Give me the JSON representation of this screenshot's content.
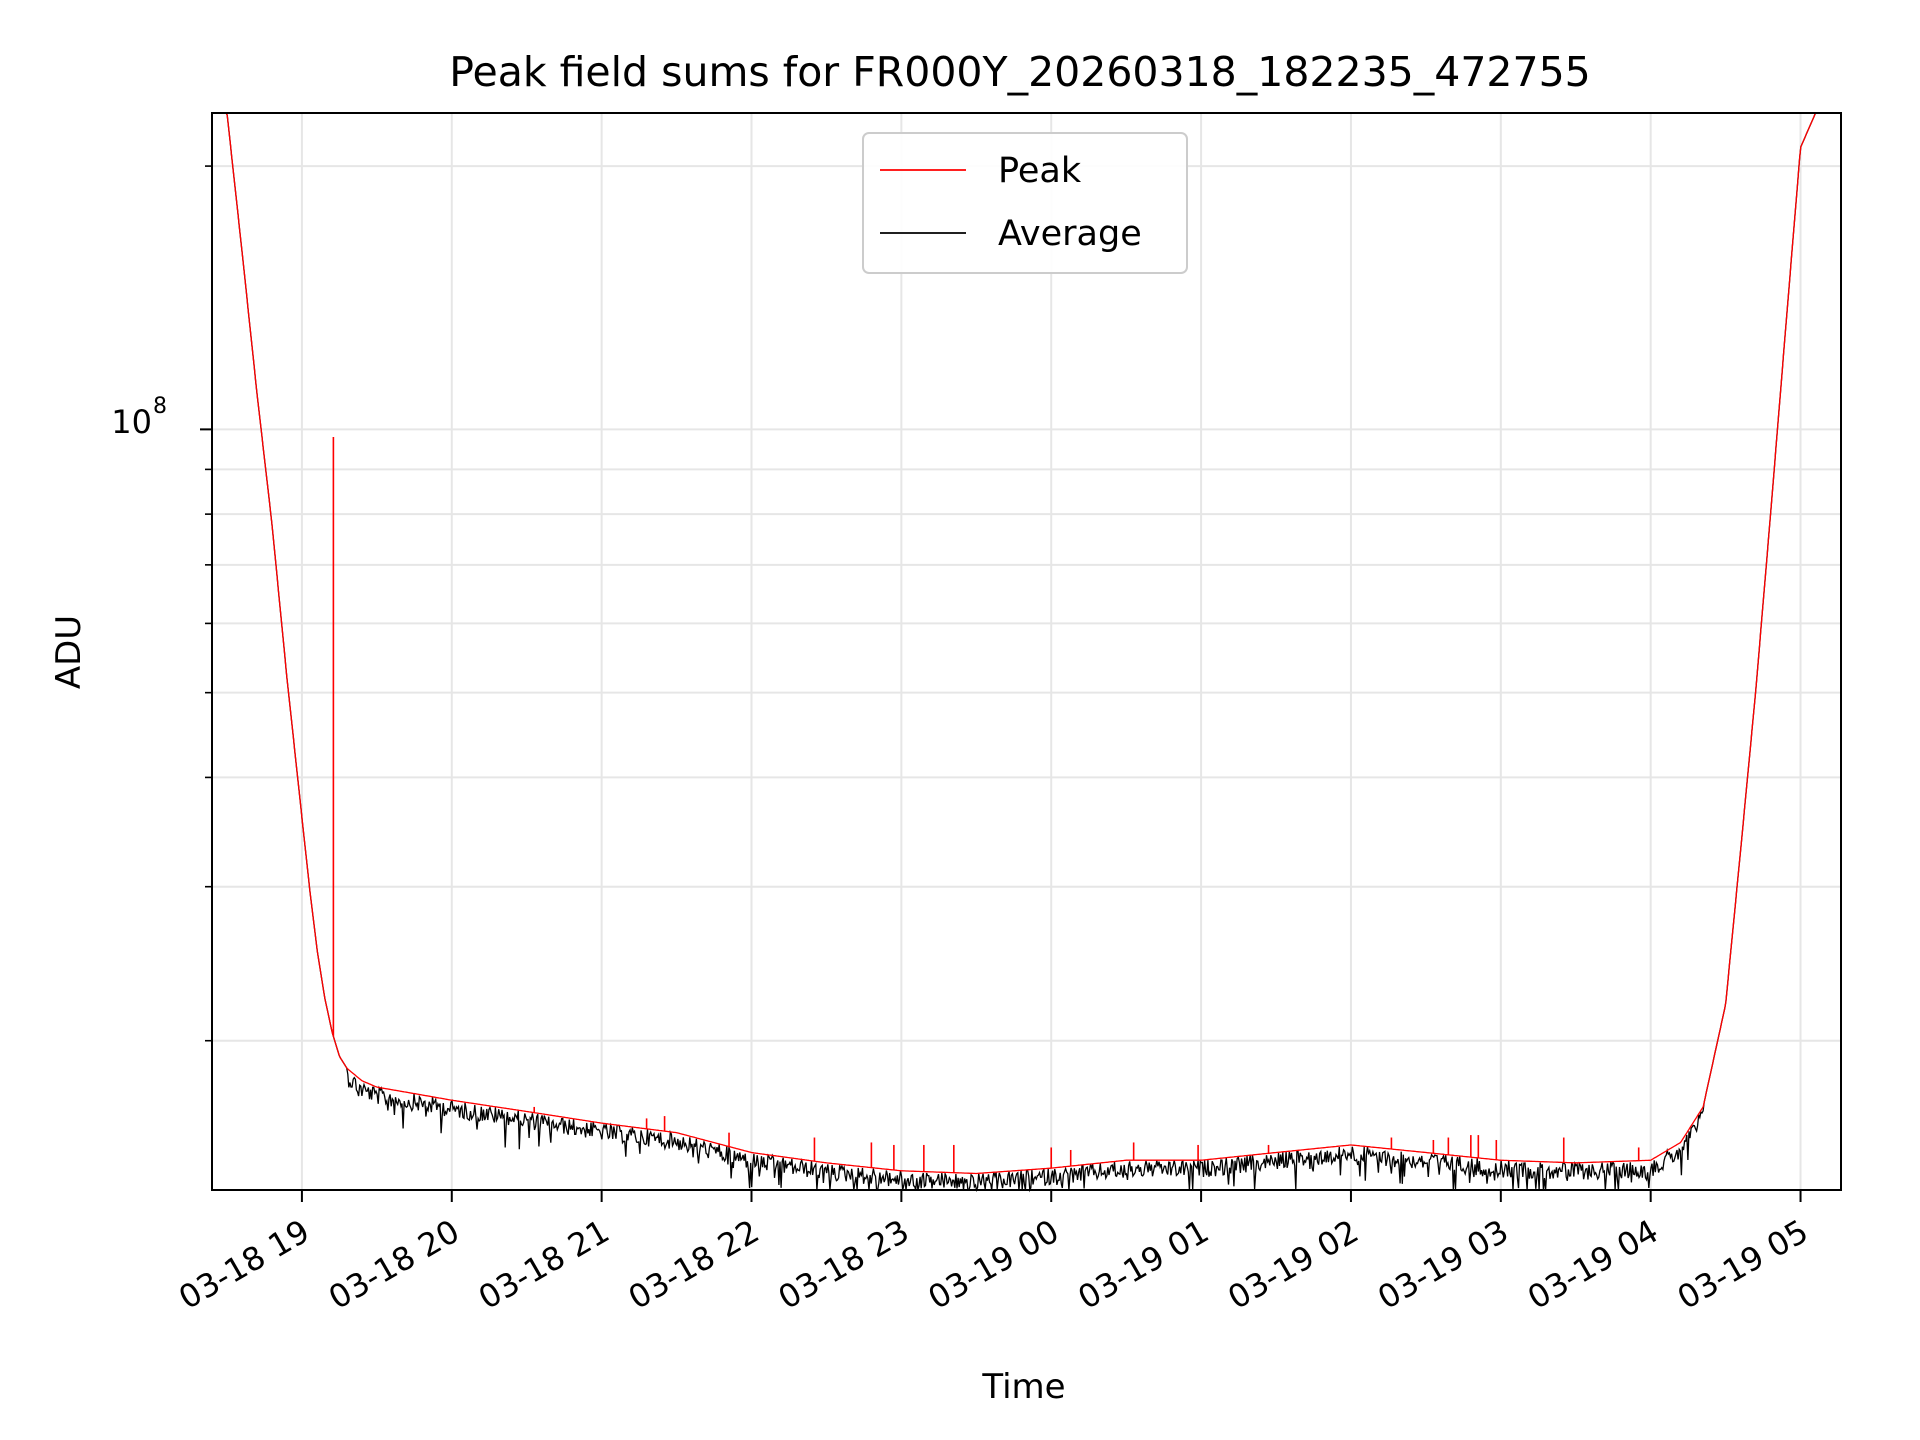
{
  "chart_data": {
    "type": "line",
    "title": "Peak field sums for FR000Y_20260318_182235_472755",
    "xlabel": "Time",
    "ylabel": "ADU",
    "y_scale": "log",
    "ylim": [
      13500000,
      230000000
    ],
    "y_major_ticks": [
      {
        "value": 100000000,
        "base": "10",
        "exp": "8"
      }
    ],
    "y_minor_ticks": [
      20000000,
      30000000,
      40000000,
      50000000,
      60000000,
      70000000,
      80000000,
      90000000,
      200000000
    ],
    "x_range_hours": [
      18.4,
      29.27
    ],
    "x_ticks": [
      {
        "hour": 19,
        "label": "03-18 19"
      },
      {
        "hour": 20,
        "label": "03-18 20"
      },
      {
        "hour": 21,
        "label": "03-18 21"
      },
      {
        "hour": 22,
        "label": "03-18 22"
      },
      {
        "hour": 23,
        "label": "03-18 23"
      },
      {
        "hour": 24,
        "label": "03-19 00"
      },
      {
        "hour": 25,
        "label": "03-19 01"
      },
      {
        "hour": 26,
        "label": "03-19 02"
      },
      {
        "hour": 27,
        "label": "03-19 03"
      },
      {
        "hour": 28,
        "label": "03-19 04"
      },
      {
        "hour": 29,
        "label": "03-19 05"
      }
    ],
    "grid": true,
    "legend_position": "top-center",
    "series": [
      {
        "name": "Peak",
        "color": "#ff0000",
        "x_hours": [
          18.4,
          18.5,
          18.6,
          18.7,
          18.8,
          18.9,
          19.0,
          19.05,
          19.1,
          19.15,
          19.2,
          19.25,
          19.3,
          19.4,
          19.5,
          19.75,
          20.0,
          20.5,
          21.0,
          21.5,
          22.0,
          22.5,
          23.0,
          23.5,
          24.0,
          24.5,
          25.0,
          25.5,
          26.0,
          26.5,
          27.0,
          27.5,
          28.0,
          28.2,
          28.35,
          28.5,
          28.6,
          28.7,
          28.8,
          28.9,
          29.0,
          29.1,
          29.27
        ],
        "values": [
          230000000,
          230000000,
          160000000,
          110000000,
          78000000,
          52000000,
          36000000,
          30000000,
          25500000,
          22500000,
          20500000,
          19200000,
          18600000,
          18000000,
          17700000,
          17400000,
          17100000,
          16600000,
          16100000,
          15700000,
          14900000,
          14500000,
          14200000,
          14100000,
          14300000,
          14600000,
          14600000,
          14900000,
          15200000,
          14900000,
          14600000,
          14500000,
          14600000,
          15300000,
          16800000,
          22000000,
          33000000,
          50000000,
          80000000,
          130000000,
          210000000,
          230000000,
          230000000
        ],
        "spikes": [
          {
            "x_hour": 19.21,
            "value": 98000000
          },
          {
            "x_hour": 20.55,
            "value": 16800000
          },
          {
            "x_hour": 21.3,
            "value": 16300000
          },
          {
            "x_hour": 21.42,
            "value": 16400000
          },
          {
            "x_hour": 21.85,
            "value": 15700000
          },
          {
            "x_hour": 22.42,
            "value": 15500000
          },
          {
            "x_hour": 22.8,
            "value": 15300000
          },
          {
            "x_hour": 22.95,
            "value": 15200000
          },
          {
            "x_hour": 23.15,
            "value": 15200000
          },
          {
            "x_hour": 23.35,
            "value": 15200000
          },
          {
            "x_hour": 24.0,
            "value": 15100000
          },
          {
            "x_hour": 24.13,
            "value": 15000000
          },
          {
            "x_hour": 24.55,
            "value": 15300000
          },
          {
            "x_hour": 24.98,
            "value": 15200000
          },
          {
            "x_hour": 25.45,
            "value": 15200000
          },
          {
            "x_hour": 26.27,
            "value": 15500000
          },
          {
            "x_hour": 26.55,
            "value": 15400000
          },
          {
            "x_hour": 26.65,
            "value": 15500000
          },
          {
            "x_hour": 26.8,
            "value": 15600000
          },
          {
            "x_hour": 26.85,
            "value": 15600000
          },
          {
            "x_hour": 26.97,
            "value": 15400000
          },
          {
            "x_hour": 27.42,
            "value": 15500000
          },
          {
            "x_hour": 27.92,
            "value": 15100000
          }
        ]
      },
      {
        "name": "Average",
        "color": "#000000",
        "x_hours": [
          18.4,
          18.5,
          18.6,
          18.7,
          18.8,
          18.9,
          19.0,
          19.05,
          19.1,
          19.15,
          19.2,
          19.25,
          19.3,
          19.4,
          19.5,
          19.75,
          20.0,
          20.5,
          21.0,
          21.5,
          22.0,
          22.5,
          23.0,
          23.5,
          24.0,
          24.5,
          25.0,
          25.5,
          26.0,
          26.5,
          27.0,
          27.5,
          28.0,
          28.2,
          28.35,
          28.5,
          28.6,
          28.7,
          28.8,
          28.9,
          29.0,
          29.1,
          29.27
        ],
        "values": [
          230000000,
          230000000,
          160000000,
          110000000,
          78000000,
          52000000,
          36000000,
          30000000,
          25500000,
          22500000,
          20500000,
          19200000,
          18600000,
          18000000,
          17700000,
          17400000,
          17100000,
          16600000,
          16100000,
          15700000,
          14900000,
          14500000,
          14200000,
          14100000,
          14300000,
          14600000,
          14600000,
          14900000,
          15200000,
          14900000,
          14600000,
          14500000,
          14600000,
          15300000,
          16800000,
          22000000,
          33000000,
          50000000,
          80000000,
          130000000,
          210000000,
          230000000,
          230000000
        ],
        "noise_depth": 0.045
      }
    ]
  }
}
